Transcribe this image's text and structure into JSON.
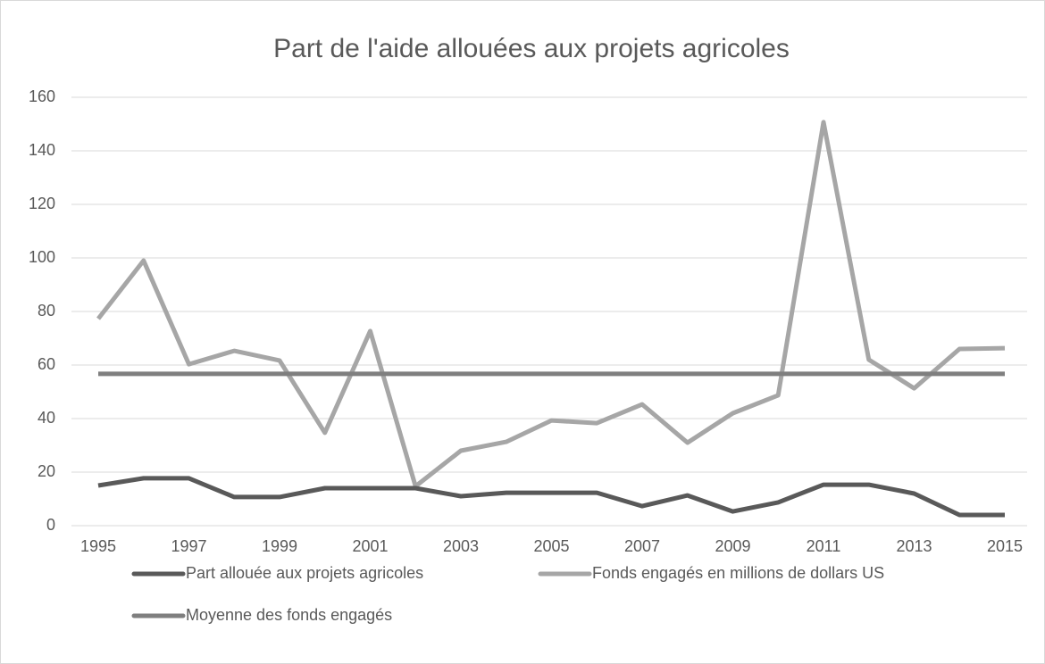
{
  "chart_data": {
    "type": "line",
    "title": "Part de l'aide allouées aux projets agricoles",
    "x": [
      1995,
      1996,
      1997,
      1998,
      1999,
      2000,
      2001,
      2002,
      2003,
      2004,
      2005,
      2006,
      2007,
      2008,
      2009,
      2010,
      2011,
      2012,
      2013,
      2014,
      2015
    ],
    "series": [
      {
        "name": "Part allouée aux projets agricoles",
        "color": "#595959",
        "values": [
          15,
          17.7,
          17.7,
          10.7,
          10.7,
          14,
          14,
          14,
          11,
          12.3,
          12.3,
          12.3,
          7.3,
          11.3,
          5.3,
          8.7,
          15.3,
          15.3,
          12,
          4,
          4
        ]
      },
      {
        "name": "Fonds engagés en millions de dollars US",
        "color": "#a6a6a6",
        "values": [
          77.3,
          99,
          60.3,
          65.3,
          61.7,
          34.7,
          72.7,
          14.7,
          28,
          31.3,
          39.3,
          38.3,
          45.3,
          31,
          42,
          48.7,
          150.7,
          62,
          51.3,
          66,
          66.3
        ]
      },
      {
        "name": "Moyenne des fonds engagés",
        "color": "#7f7f7f",
        "values": [
          56.7,
          56.7,
          56.7,
          56.7,
          56.7,
          56.7,
          56.7,
          56.7,
          56.7,
          56.7,
          56.7,
          56.7,
          56.7,
          56.7,
          56.7,
          56.7,
          56.7,
          56.7,
          56.7,
          56.7,
          56.7
        ]
      }
    ],
    "xlim": [
      1995,
      2015
    ],
    "xticks": [
      1995,
      1997,
      1999,
      2001,
      2003,
      2005,
      2007,
      2009,
      2011,
      2013,
      2015
    ],
    "ylim": [
      0,
      160
    ],
    "yticks": [
      0,
      20,
      40,
      60,
      80,
      100,
      120,
      140,
      160
    ],
    "grid": true
  }
}
